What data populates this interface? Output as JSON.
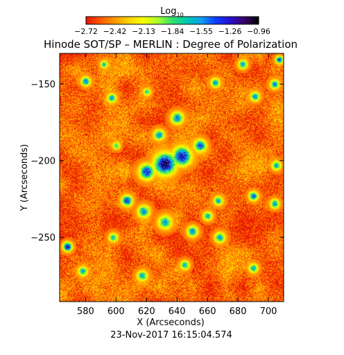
{
  "chart_data": {
    "type": "heatmap",
    "title": "Hinode SOT/SP – MERLIN : Degree of Polarization",
    "colorbar": {
      "label": "Log",
      "label_sub": "10",
      "tick_labels": [
        "-2.72",
        "-2.42",
        "-2.13",
        "-1.84",
        "-1.55",
        "-1.26",
        "-0.96"
      ],
      "range": [
        -2.72,
        -0.96
      ],
      "colormap": [
        "#e51400",
        "#ff5a00",
        "#ff9a00",
        "#ffd400",
        "#f6ff00",
        "#a8ff2a",
        "#30e070",
        "#00c8b0",
        "#10a0f0",
        "#0c3cff",
        "#2a10d0",
        "#3a006a",
        "#000000"
      ]
    },
    "xlabel": "X (Arcseconds)",
    "ylabel": "Y (Arcseconds)",
    "xlim": [
      563,
      710
    ],
    "ylim": [
      -292,
      -130
    ],
    "x_ticks": [
      580,
      600,
      620,
      640,
      660,
      680,
      700
    ],
    "y_ticks": [
      -150,
      -200,
      -250
    ],
    "x_tick_labels": [
      "580",
      "600",
      "620",
      "640",
      "660",
      "680",
      "700"
    ],
    "y_tick_labels": [
      "-150",
      "-200",
      "-250"
    ],
    "blobs": [
      {
        "x": 632,
        "y": -202,
        "r": 7.0,
        "v": -1.05
      },
      {
        "x": 643,
        "y": -197,
        "r": 6.0,
        "v": -1.15
      },
      {
        "x": 620,
        "y": -207,
        "r": 5.0,
        "v": -1.3
      },
      {
        "x": 655,
        "y": -190,
        "r": 4.0,
        "v": -1.4
      },
      {
        "x": 640,
        "y": -172,
        "r": 4.0,
        "v": -1.5
      },
      {
        "x": 628,
        "y": -183,
        "r": 3.5,
        "v": -1.55
      },
      {
        "x": 607,
        "y": -226,
        "r": 3.5,
        "v": -1.3
      },
      {
        "x": 618,
        "y": -233,
        "r": 4.0,
        "v": -1.55
      },
      {
        "x": 632,
        "y": -240,
        "r": 4.5,
        "v": -1.6
      },
      {
        "x": 650,
        "y": -246,
        "r": 3.5,
        "v": -1.55
      },
      {
        "x": 660,
        "y": -236,
        "r": 3.0,
        "v": -1.65
      },
      {
        "x": 667,
        "y": -226,
        "r": 3.0,
        "v": -1.6
      },
      {
        "x": 668,
        "y": -250,
        "r": 3.5,
        "v": -1.6
      },
      {
        "x": 690,
        "y": -223,
        "r": 3.0,
        "v": -1.45
      },
      {
        "x": 705,
        "y": -203,
        "r": 3.0,
        "v": -1.6
      },
      {
        "x": 704,
        "y": -228,
        "r": 3.0,
        "v": -1.55
      },
      {
        "x": 568,
        "y": -256,
        "r": 3.0,
        "v": -1.2
      },
      {
        "x": 578,
        "y": -272,
        "r": 3.0,
        "v": -1.55
      },
      {
        "x": 580,
        "y": -148,
        "r": 3.0,
        "v": -1.5
      },
      {
        "x": 597,
        "y": -159,
        "r": 3.0,
        "v": -1.6
      },
      {
        "x": 592,
        "y": -137,
        "r": 2.5,
        "v": -1.7
      },
      {
        "x": 683,
        "y": -137,
        "r": 3.0,
        "v": -1.6
      },
      {
        "x": 691,
        "y": -158,
        "r": 3.0,
        "v": -1.55
      },
      {
        "x": 704,
        "y": -150,
        "r": 3.0,
        "v": -1.5
      },
      {
        "x": 707,
        "y": -134,
        "r": 2.5,
        "v": -1.4
      },
      {
        "x": 665,
        "y": -149,
        "r": 3.0,
        "v": -1.55
      },
      {
        "x": 690,
        "y": -270,
        "r": 3.0,
        "v": -1.6
      },
      {
        "x": 617,
        "y": -275,
        "r": 3.5,
        "v": -1.65
      },
      {
        "x": 645,
        "y": -268,
        "r": 3.0,
        "v": -1.65
      },
      {
        "x": 598,
        "y": -250,
        "r": 3.0,
        "v": -1.7
      },
      {
        "x": 600,
        "y": -190,
        "r": 2.5,
        "v": -1.75
      },
      {
        "x": 620,
        "y": -155,
        "r": 2.5,
        "v": -1.75
      }
    ],
    "background_level": -2.55,
    "grid": false
  },
  "footer": {
    "timestamp": "23-Nov-2017 16:15:04.574"
  }
}
